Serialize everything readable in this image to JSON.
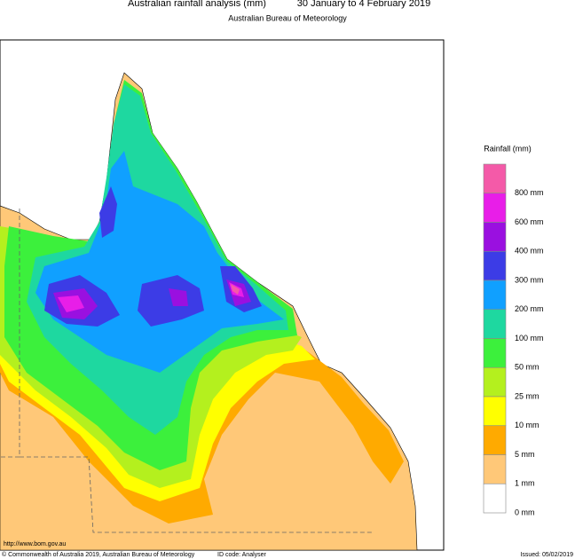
{
  "header": {
    "title": "Australian rainfall analysis (mm)",
    "period": "30 January to 4 February 2019",
    "subtitle": "Australian Bureau of Meteorology"
  },
  "legend": {
    "title": "Rainfall (mm)",
    "items": [
      {
        "label": "800 mm",
        "color": "#f45aa8"
      },
      {
        "label": "600 mm",
        "color": "#e81ee8"
      },
      {
        "label": "400 mm",
        "color": "#9a10e0"
      },
      {
        "label": "300 mm",
        "color": "#3c3ce6"
      },
      {
        "label": "200 mm",
        "color": "#10a0ff"
      },
      {
        "label": "100 mm",
        "color": "#1ed8a0"
      },
      {
        "label": "50 mm",
        "color": "#3cf03c"
      },
      {
        "label": "25 mm",
        "color": "#b4f01e"
      },
      {
        "label": "10 mm",
        "color": "#ffff00"
      },
      {
        "label": "5 mm",
        "color": "#ffaa00"
      },
      {
        "label": "1 mm",
        "color": "#ffc878"
      },
      {
        "label": "0 mm",
        "color": "#ffffff"
      }
    ]
  },
  "footer": {
    "url": "http://www.bom.gov.au",
    "copyright": "© Commonwealth of Australia 2019, Australian Bureau of Meteorology",
    "id": "ID code: Analyser",
    "issued": "Issued: 05/02/2019"
  }
}
